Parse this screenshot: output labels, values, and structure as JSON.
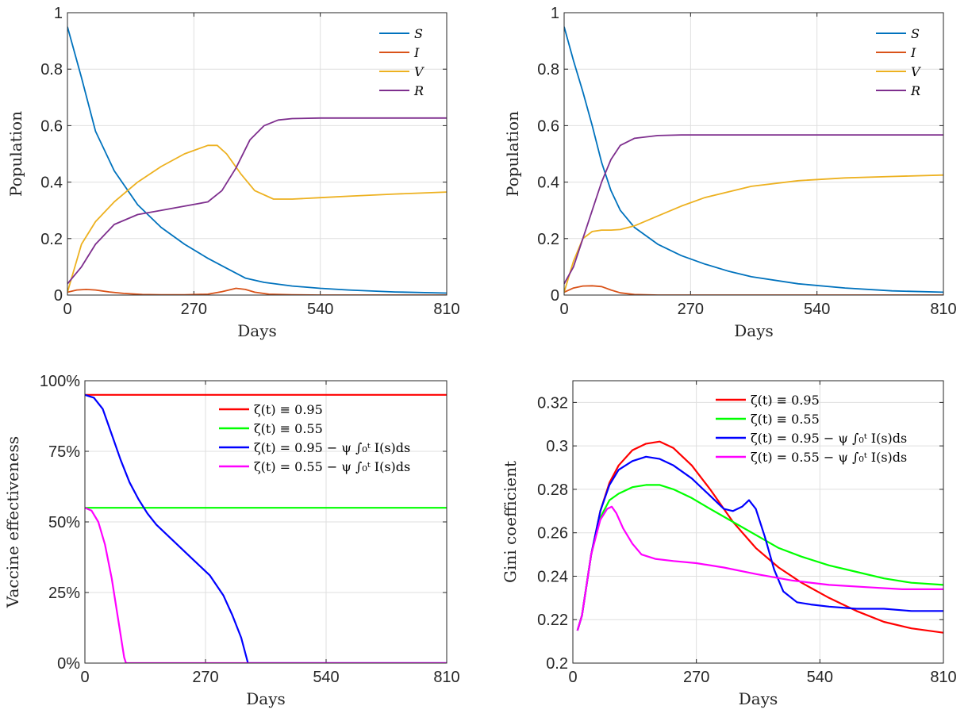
{
  "chart_data": [
    {
      "type": "line",
      "xlabel": "Days",
      "ylabel": "Population",
      "xlim": [
        0,
        810
      ],
      "ylim": [
        0,
        1
      ],
      "xticks": [
        "0",
        "270",
        "540",
        "810"
      ],
      "yticks": [
        "0",
        "0.2",
        "0.4",
        "0.6",
        "0.8",
        "1"
      ],
      "grid": true,
      "legend_position": "top-right",
      "series": [
        {
          "name": "S",
          "color": "#0072BD",
          "x": [
            0,
            30,
            60,
            100,
            150,
            200,
            250,
            300,
            340,
            380,
            420,
            480,
            540,
            600,
            700,
            810
          ],
          "y": [
            0.95,
            0.77,
            0.58,
            0.44,
            0.32,
            0.24,
            0.18,
            0.13,
            0.095,
            0.06,
            0.045,
            0.032,
            0.024,
            0.018,
            0.011,
            0.007
          ]
        },
        {
          "name": "I",
          "color": "#D95319",
          "x": [
            0,
            20,
            40,
            60,
            90,
            120,
            160,
            200,
            250,
            300,
            330,
            360,
            380,
            400,
            430,
            480,
            540,
            810
          ],
          "y": [
            0.01,
            0.018,
            0.02,
            0.018,
            0.011,
            0.006,
            0.002,
            0.001,
            0.001,
            0.003,
            0.012,
            0.024,
            0.02,
            0.01,
            0.003,
            0.001,
            0.0,
            0.0
          ]
        },
        {
          "name": "V",
          "color": "#EDB120",
          "x": [
            0,
            30,
            60,
            100,
            150,
            200,
            250,
            300,
            320,
            340,
            370,
            400,
            440,
            480,
            540,
            600,
            700,
            810
          ],
          "y": [
            0.01,
            0.18,
            0.26,
            0.33,
            0.4,
            0.455,
            0.5,
            0.53,
            0.53,
            0.5,
            0.43,
            0.37,
            0.34,
            0.34,
            0.345,
            0.35,
            0.358,
            0.365
          ]
        },
        {
          "name": "R",
          "color": "#7E2F8E",
          "x": [
            0,
            30,
            60,
            100,
            150,
            200,
            250,
            300,
            330,
            360,
            390,
            420,
            450,
            480,
            540,
            600,
            700,
            810
          ],
          "y": [
            0.04,
            0.1,
            0.18,
            0.25,
            0.285,
            0.3,
            0.315,
            0.33,
            0.37,
            0.45,
            0.55,
            0.6,
            0.62,
            0.625,
            0.627,
            0.627,
            0.627,
            0.627
          ]
        }
      ]
    },
    {
      "type": "line",
      "xlabel": "Days",
      "ylabel": "Population",
      "xlim": [
        0,
        810
      ],
      "ylim": [
        0,
        1
      ],
      "xticks": [
        "0",
        "270",
        "540",
        "810"
      ],
      "yticks": [
        "0",
        "0.2",
        "0.4",
        "0.6",
        "0.8",
        "1"
      ],
      "grid": true,
      "legend_position": "top-right",
      "series": [
        {
          "name": "S",
          "color": "#0072BD",
          "x": [
            0,
            20,
            40,
            60,
            80,
            100,
            120,
            150,
            200,
            250,
            300,
            350,
            400,
            500,
            600,
            700,
            810
          ],
          "y": [
            0.95,
            0.83,
            0.72,
            0.6,
            0.47,
            0.37,
            0.3,
            0.24,
            0.18,
            0.14,
            0.11,
            0.085,
            0.065,
            0.04,
            0.025,
            0.015,
            0.01
          ]
        },
        {
          "name": "I",
          "color": "#D95319",
          "x": [
            0,
            20,
            40,
            60,
            80,
            100,
            120,
            150,
            200,
            810
          ],
          "y": [
            0.01,
            0.025,
            0.032,
            0.033,
            0.03,
            0.018,
            0.008,
            0.002,
            0.0,
            0.0
          ]
        },
        {
          "name": "V",
          "color": "#EDB120",
          "x": [
            0,
            20,
            40,
            60,
            80,
            100,
            120,
            150,
            200,
            250,
            300,
            400,
            500,
            600,
            700,
            810
          ],
          "y": [
            0.01,
            0.12,
            0.2,
            0.225,
            0.23,
            0.23,
            0.232,
            0.245,
            0.28,
            0.315,
            0.345,
            0.385,
            0.405,
            0.415,
            0.42,
            0.425
          ]
        },
        {
          "name": "R",
          "color": "#7E2F8E",
          "x": [
            0,
            20,
            40,
            60,
            80,
            100,
            120,
            150,
            200,
            250,
            300,
            400,
            810
          ],
          "y": [
            0.04,
            0.1,
            0.2,
            0.3,
            0.4,
            0.48,
            0.53,
            0.555,
            0.565,
            0.567,
            0.567,
            0.567,
            0.567
          ]
        }
      ]
    },
    {
      "type": "line",
      "xlabel": "Days",
      "ylabel": "Vaccine effectiveness",
      "xlim": [
        0,
        810
      ],
      "ylim": [
        0,
        1
      ],
      "xticks": [
        "0",
        "270",
        "540",
        "810"
      ],
      "yticks": [
        "0%",
        "25%",
        "50%",
        "75%",
        "100%"
      ],
      "grid": true,
      "legend_position": "top-right",
      "series": [
        {
          "name": "ζ(t) ≡ 0.95",
          "color": "#FF0000",
          "x": [
            0,
            810
          ],
          "y": [
            0.95,
            0.95
          ]
        },
        {
          "name": "ζ(t) ≡ 0.55",
          "color": "#00FF00",
          "x": [
            0,
            810
          ],
          "y": [
            0.55,
            0.55
          ]
        },
        {
          "name": "ζ(t) = 0.95 − ψ ∫₀ᵗ I(s)ds",
          "color": "#0000FF",
          "x": [
            0,
            20,
            40,
            60,
            80,
            100,
            120,
            140,
            160,
            200,
            240,
            280,
            310,
            330,
            350,
            365,
            367,
            810
          ],
          "y": [
            0.95,
            0.94,
            0.9,
            0.81,
            0.72,
            0.64,
            0.58,
            0.53,
            0.49,
            0.43,
            0.37,
            0.31,
            0.24,
            0.17,
            0.09,
            0.0,
            0.0,
            0.0
          ]
        },
        {
          "name": "ζ(t) = 0.55 − ψ ∫₀ᵗ I(s)ds",
          "color": "#FF00FF",
          "x": [
            0,
            15,
            30,
            45,
            60,
            75,
            88,
            92,
            810
          ],
          "y": [
            0.55,
            0.54,
            0.5,
            0.42,
            0.3,
            0.15,
            0.02,
            0.0,
            0.0
          ]
        }
      ]
    },
    {
      "type": "line",
      "xlabel": "Days",
      "ylabel": "Gini coefficient",
      "xlim": [
        0,
        810
      ],
      "ylim": [
        0.2,
        0.33
      ],
      "xticks": [
        "0",
        "270",
        "540",
        "810"
      ],
      "yticks": [
        "0.2",
        "0.22",
        "0.24",
        "0.26",
        "0.28",
        "0.3",
        "0.32"
      ],
      "grid": true,
      "legend_position": "top-right",
      "series": [
        {
          "name": "ζ(t) ≡ 0.95",
          "color": "#FF0000",
          "x": [
            10,
            20,
            40,
            60,
            80,
            100,
            130,
            160,
            190,
            220,
            260,
            300,
            350,
            400,
            450,
            500,
            560,
            620,
            680,
            740,
            810
          ],
          "y": [
            0.215,
            0.222,
            0.25,
            0.27,
            0.283,
            0.291,
            0.298,
            0.301,
            0.302,
            0.299,
            0.291,
            0.28,
            0.265,
            0.253,
            0.244,
            0.237,
            0.23,
            0.224,
            0.219,
            0.216,
            0.214
          ]
        },
        {
          "name": "ζ(t) ≡ 0.55",
          "color": "#00FF00",
          "x": [
            10,
            20,
            40,
            60,
            80,
            100,
            130,
            160,
            190,
            220,
            260,
            300,
            350,
            400,
            450,
            500,
            560,
            620,
            680,
            740,
            810
          ],
          "y": [
            0.215,
            0.222,
            0.25,
            0.267,
            0.275,
            0.278,
            0.281,
            0.282,
            0.282,
            0.28,
            0.276,
            0.271,
            0.265,
            0.259,
            0.253,
            0.249,
            0.245,
            0.242,
            0.239,
            0.237,
            0.236
          ]
        },
        {
          "name": "ζ(t) = 0.95 − ψ ∫₀ᵗ I(s)ds",
          "color": "#0000FF",
          "x": [
            10,
            20,
            40,
            60,
            80,
            100,
            130,
            160,
            190,
            220,
            260,
            300,
            330,
            350,
            370,
            385,
            400,
            420,
            440,
            460,
            490,
            520,
            560,
            620,
            680,
            740,
            810
          ],
          "y": [
            0.215,
            0.222,
            0.25,
            0.27,
            0.282,
            0.289,
            0.293,
            0.295,
            0.294,
            0.291,
            0.285,
            0.277,
            0.271,
            0.27,
            0.272,
            0.275,
            0.271,
            0.258,
            0.243,
            0.233,
            0.228,
            0.227,
            0.226,
            0.225,
            0.225,
            0.224,
            0.224
          ]
        },
        {
          "name": "ζ(t) = 0.55 − ψ ∫₀ᵗ I(s)ds",
          "color": "#FF00FF",
          "x": [
            10,
            20,
            40,
            60,
            75,
            85,
            95,
            110,
            130,
            150,
            180,
            220,
            270,
            330,
            400,
            480,
            560,
            640,
            720,
            810
          ],
          "y": [
            0.215,
            0.222,
            0.25,
            0.266,
            0.271,
            0.272,
            0.269,
            0.262,
            0.255,
            0.25,
            0.248,
            0.247,
            0.246,
            0.244,
            0.241,
            0.238,
            0.236,
            0.235,
            0.234,
            0.234
          ]
        }
      ]
    }
  ]
}
